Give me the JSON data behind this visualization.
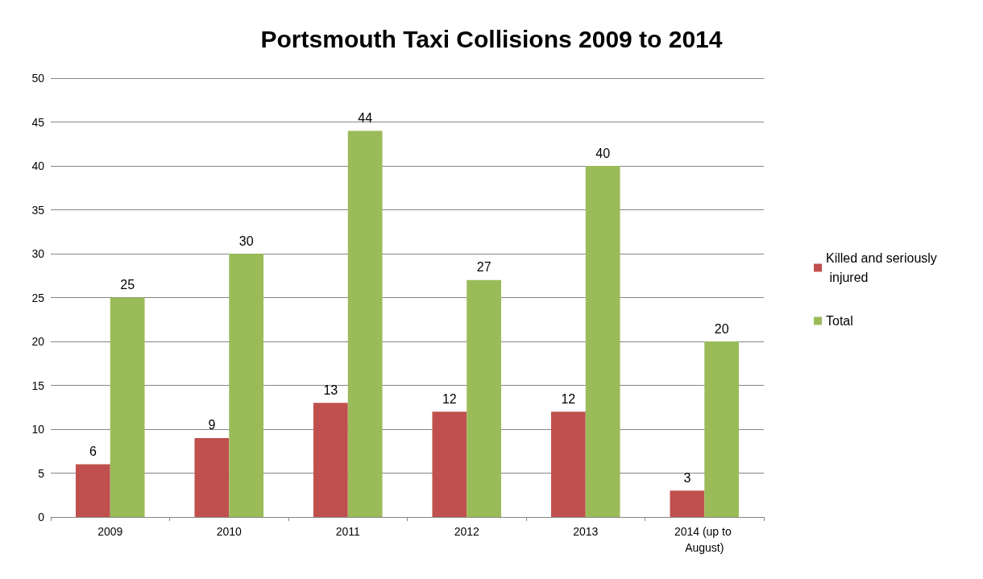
{
  "chart_data": {
    "type": "bar",
    "title": "Portsmouth Taxi Collisions 2009 to 2014",
    "categories": [
      "2009",
      "2010",
      "2011",
      "2012",
      "2013",
      "2014 (up to August)"
    ],
    "series": [
      {
        "name": "Killed and seriously injured",
        "color": "#c0504d",
        "values": [
          6,
          9,
          13,
          12,
          12,
          3
        ]
      },
      {
        "name": "Total",
        "color": "#9bbb59",
        "values": [
          25,
          30,
          44,
          27,
          40,
          20
        ]
      }
    ],
    "ylim": [
      0,
      50
    ],
    "yticks": [
      0,
      5,
      10,
      15,
      20,
      25,
      30,
      35,
      40,
      45,
      50
    ],
    "grid": "y",
    "legend": "right",
    "data_labels": true
  }
}
